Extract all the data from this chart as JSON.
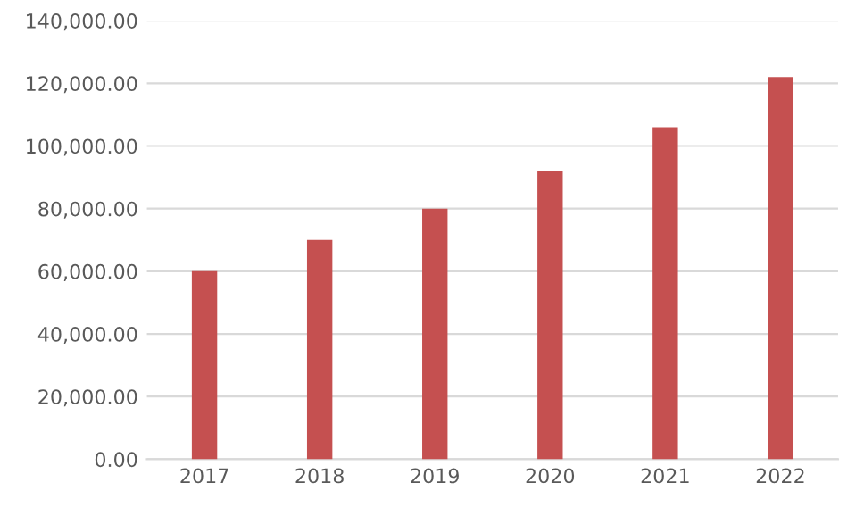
{
  "chart_data": {
    "type": "bar",
    "categories": [
      "2017",
      "2018",
      "2019",
      "2020",
      "2021",
      "2022"
    ],
    "values": [
      60000,
      70000,
      80000,
      92000,
      106000,
      122000
    ],
    "color": "#c55050",
    "ylim": [
      0,
      140000
    ],
    "yticks": [
      {
        "value": 0,
        "label": "0.00"
      },
      {
        "value": 20000,
        "label": "20,000.00"
      },
      {
        "value": 40000,
        "label": "40,000.00"
      },
      {
        "value": 60000,
        "label": "60,000.00"
      },
      {
        "value": 80000,
        "label": "80,000.00"
      },
      {
        "value": 100000,
        "label": "100,000.00"
      },
      {
        "value": 120000,
        "label": "120,000.00"
      },
      {
        "value": 140000,
        "label": "140,000.00"
      }
    ],
    "grid": "y",
    "legend": false
  }
}
